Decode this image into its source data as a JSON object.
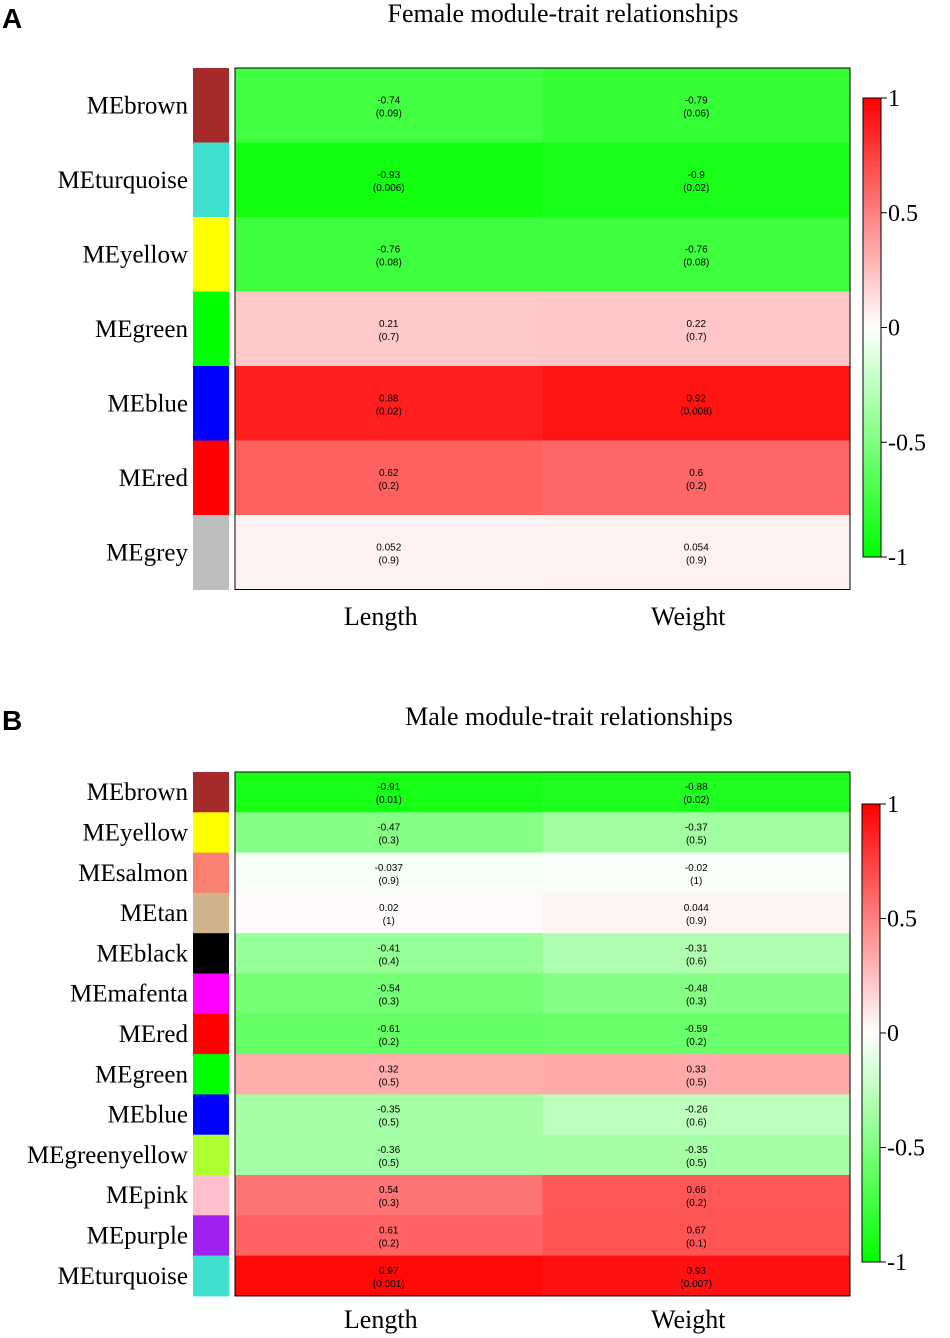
{
  "colors": {
    "negative": "#00ff00",
    "zero": "#ffffff",
    "positive": "#ff0000"
  },
  "chart_data": [
    {
      "type": "heatmap",
      "panel": "A",
      "title": "Female module-trait relationships",
      "columns": [
        "Length",
        "Weight"
      ],
      "rows": [
        {
          "label": "MEbrown",
          "swatch": "#a52a2a",
          "values": [
            -0.74,
            -0.79
          ],
          "corr_text": [
            "-0.74",
            "-0.79"
          ],
          "p_text": [
            "(0.09)",
            "(0.06)"
          ]
        },
        {
          "label": "MEturquoise",
          "swatch": "#40e0d0",
          "values": [
            -0.93,
            -0.9
          ],
          "corr_text": [
            "-0.93",
            "-0.9"
          ],
          "p_text": [
            "(0.006)",
            "(0.02)"
          ]
        },
        {
          "label": "MEyellow",
          "swatch": "#ffff00",
          "values": [
            -0.76,
            -0.76
          ],
          "corr_text": [
            "-0.76",
            "-0.76"
          ],
          "p_text": [
            "(0.08)",
            "(0.08)"
          ]
        },
        {
          "label": "MEgreen",
          "swatch": "#00ff00",
          "values": [
            0.21,
            0.22
          ],
          "corr_text": [
            "0.21",
            "0.22"
          ],
          "p_text": [
            "(0.7)",
            "(0.7)"
          ]
        },
        {
          "label": "MEblue",
          "swatch": "#0000ff",
          "values": [
            0.88,
            0.92
          ],
          "corr_text": [
            "0.88",
            "0.92"
          ],
          "p_text": [
            "(0.02)",
            "(0.008)"
          ]
        },
        {
          "label": "MEred",
          "swatch": "#ff0000",
          "values": [
            0.62,
            0.6
          ],
          "corr_text": [
            "0.62",
            "0.6"
          ],
          "p_text": [
            "(0.2)",
            "(0.2)"
          ]
        },
        {
          "label": "MEgrey",
          "swatch": "#bebebe",
          "values": [
            0.052,
            0.054
          ],
          "corr_text": [
            "0.052",
            "0.054"
          ],
          "p_text": [
            "(0.9)",
            "(0.9)"
          ]
        }
      ],
      "legend": {
        "range": [
          -1,
          1
        ],
        "ticks": [
          "1",
          "0.5",
          "0",
          "-0.5",
          "-1"
        ],
        "tick_values": [
          1,
          0.5,
          0,
          -0.5,
          -1
        ]
      }
    },
    {
      "type": "heatmap",
      "panel": "B",
      "title": "Male module-trait relationships",
      "columns": [
        "Length",
        "Weight"
      ],
      "rows": [
        {
          "label": "MEbrown",
          "swatch": "#a52a2a",
          "values": [
            -0.91,
            -0.88
          ],
          "corr_text": [
            "-0.91",
            "-0.88"
          ],
          "p_text": [
            "(0.01)",
            "(0.02)"
          ]
        },
        {
          "label": "MEyellow",
          "swatch": "#ffff00",
          "values": [
            -0.47,
            -0.37
          ],
          "corr_text": [
            "-0.47",
            "-0.37"
          ],
          "p_text": [
            "(0.3)",
            "(0.5)"
          ]
        },
        {
          "label": "MEsalmon",
          "swatch": "#fa8072",
          "values": [
            -0.037,
            -0.02
          ],
          "corr_text": [
            "-0.037",
            "-0.02"
          ],
          "p_text": [
            "(0.9)",
            "(1)"
          ]
        },
        {
          "label": "MEtan",
          "swatch": "#d2b48c",
          "values": [
            0.02,
            0.044
          ],
          "corr_text": [
            "0.02",
            "0.044"
          ],
          "p_text": [
            "(1)",
            "(0.9)"
          ]
        },
        {
          "label": "MEblack",
          "swatch": "#000000",
          "values": [
            -0.41,
            -0.31
          ],
          "corr_text": [
            "-0.41",
            "-0.31"
          ],
          "p_text": [
            "(0.4)",
            "(0.6)"
          ]
        },
        {
          "label": "MEmafenta",
          "swatch": "#ff00ff",
          "values": [
            -0.54,
            -0.48
          ],
          "corr_text": [
            "-0.54",
            "-0.48"
          ],
          "p_text": [
            "(0.3)",
            "(0.3)"
          ]
        },
        {
          "label": "MEred",
          "swatch": "#ff0000",
          "values": [
            -0.61,
            -0.59
          ],
          "corr_text": [
            "-0.61",
            "-0.59"
          ],
          "p_text": [
            "(0.2)",
            "(0.2)"
          ]
        },
        {
          "label": "MEgreen",
          "swatch": "#00ff00",
          "values": [
            0.32,
            0.33
          ],
          "corr_text": [
            "0.32",
            "0.33"
          ],
          "p_text": [
            "(0.5)",
            "(0.5)"
          ]
        },
        {
          "label": "MEblue",
          "swatch": "#0000ff",
          "values": [
            -0.35,
            -0.26
          ],
          "corr_text": [
            "-0.35",
            "-0.26"
          ],
          "p_text": [
            "(0.5)",
            "(0.6)"
          ]
        },
        {
          "label": "MEgreenyellow",
          "swatch": "#adff2f",
          "values": [
            -0.36,
            -0.35
          ],
          "corr_text": [
            "-0.36",
            "-0.35"
          ],
          "p_text": [
            "(0.5)",
            "(0.5)"
          ]
        },
        {
          "label": "MEpink",
          "swatch": "#ffc0cb",
          "values": [
            0.54,
            0.66
          ],
          "corr_text": [
            "0.54",
            "0.66"
          ],
          "p_text": [
            "(0.3)",
            "(0.2)"
          ]
        },
        {
          "label": "MEpurple",
          "swatch": "#a020f0",
          "values": [
            0.61,
            0.67
          ],
          "corr_text": [
            "0.61",
            "0.67"
          ],
          "p_text": [
            "(0.2)",
            "(0.1)"
          ]
        },
        {
          "label": "MEturquoise",
          "swatch": "#40e0d0",
          "values": [
            0.97,
            0.93
          ],
          "corr_text": [
            "0.97",
            "0.93"
          ],
          "p_text": [
            "(0.001)",
            "(0.007)"
          ]
        }
      ],
      "legend": {
        "range": [
          -1,
          1
        ],
        "ticks": [
          "1",
          "0.5",
          "0",
          "-0.5",
          "-1"
        ],
        "tick_values": [
          1,
          0.5,
          0,
          -0.5,
          -1
        ]
      }
    }
  ]
}
